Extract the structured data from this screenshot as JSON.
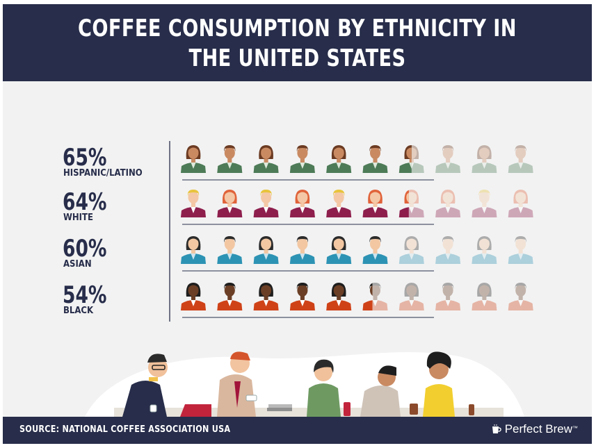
{
  "header": {
    "title": "COFFEE CONSUMPTION BY ETHNICITY IN THE UNITED STATES"
  },
  "chart_data": {
    "type": "pictograph",
    "icons_per_row": 10,
    "rows": [
      {
        "percent_label": "65%",
        "label": "HISPANIC/LATINO",
        "value": 65,
        "colors": {
          "shirt": "#4d7b57",
          "skin": "#c98a62",
          "hair_a": "#6b3b22",
          "hair_b": "#6b3b22",
          "accent": "#dfe9dc"
        }
      },
      {
        "percent_label": "64%",
        "label": "WHITE",
        "value": 64,
        "colors": {
          "shirt": "#8e1f4d",
          "skin": "#f4c8a6",
          "hair_a": "#e8c43c",
          "hair_b": "#e0633a",
          "accent": "#ffffff"
        }
      },
      {
        "percent_label": "60%",
        "label": "ASIAN",
        "value": 60,
        "colors": {
          "shirt": "#2d93b4",
          "skin": "#f2c7a2",
          "hair_a": "#2b2b2b",
          "hair_b": "#2b2b2b",
          "accent": "#cde4ee"
        }
      },
      {
        "percent_label": "54%",
        "label": "BLACK",
        "value": 54,
        "colors": {
          "shirt": "#cf4218",
          "skin": "#6b3f26",
          "hair_a": "#1e1e1e",
          "hair_b": "#1e1e1e",
          "accent": "#ffffff"
        }
      }
    ],
    "colors": {
      "label_text": "#272d4a",
      "divider": "#272d4a"
    }
  },
  "footer": {
    "source": "SOURCE: NATIONAL COFFEE ASSOCIATION USA",
    "brand": "Perfect Brew",
    "trademark": "™"
  }
}
